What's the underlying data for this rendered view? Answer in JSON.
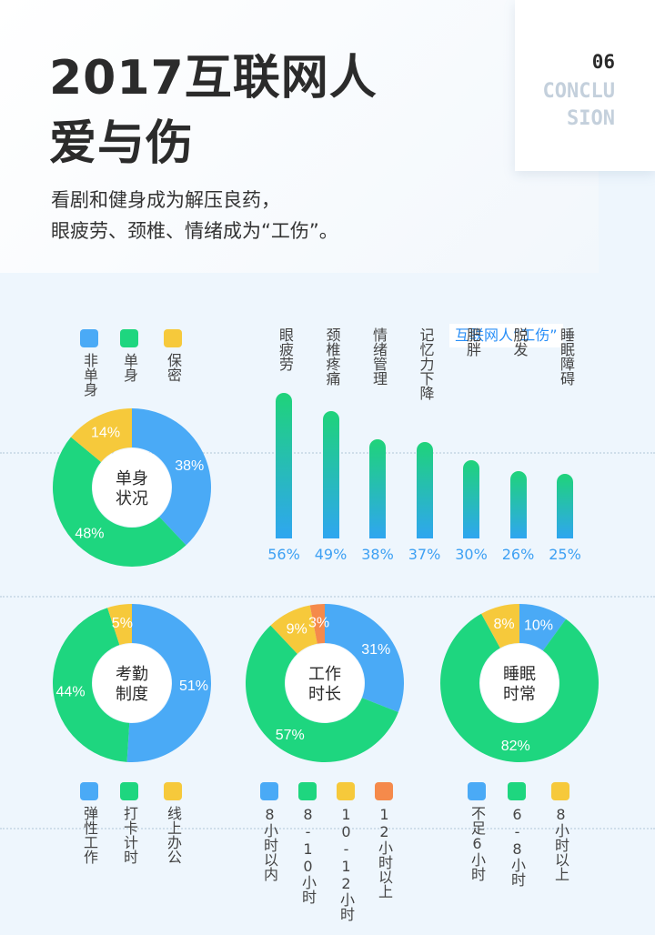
{
  "header": {
    "title_line1": "2017互联网人",
    "title_line2": "爱与伤",
    "subtitle_line1": "看剧和健身成为解压良药，",
    "subtitle_line2": "眼疲劳、颈椎、情绪成为“工伤”。",
    "section_number": "06",
    "section_word_line1": "CONCLU",
    "section_word_line2": "SION"
  },
  "colors": {
    "blue": "#4aaaf6",
    "green": "#1ed67f",
    "yellow": "#f6c93b",
    "orange": "#f58a4b"
  },
  "chart_data": [
    {
      "type": "pie",
      "center_label": "单身\n状况",
      "slices": [
        {
          "name": "非单身",
          "value": 38,
          "label": "38%",
          "color": "#4aaaf6"
        },
        {
          "name": "单身",
          "value": 48,
          "label": "48%",
          "color": "#1ed67f"
        },
        {
          "name": "保密",
          "value": 14,
          "label": "14%",
          "color": "#f6c93b"
        }
      ]
    },
    {
      "type": "bar",
      "title": "互联网人“工伤”",
      "categories": [
        "眼疲劳",
        "颈椎疼痛",
        "情绪管理",
        "记忆力下降",
        "肥胖",
        "脱发",
        "睡眠障碍"
      ],
      "values": [
        56,
        49,
        38,
        37,
        30,
        26,
        25
      ],
      "value_labels": [
        "56%",
        "49%",
        "38%",
        "37%",
        "30%",
        "26%",
        "25%"
      ],
      "ylim": [
        0,
        60
      ]
    },
    {
      "type": "pie",
      "center_label": "考勤\n制度",
      "slices": [
        {
          "name": "弹性工作",
          "value": 51,
          "label": "51%",
          "color": "#4aaaf6"
        },
        {
          "name": "打卡计时",
          "value": 44,
          "label": "44%",
          "color": "#1ed67f"
        },
        {
          "name": "线上办公",
          "value": 5,
          "label": "5%",
          "color": "#f6c93b"
        }
      ]
    },
    {
      "type": "pie",
      "center_label": "工作\n时长",
      "slices": [
        {
          "name": "8小时以内",
          "value": 31,
          "label": "31%",
          "color": "#4aaaf6"
        },
        {
          "name": "8-10小时",
          "value": 57,
          "label": "57%",
          "color": "#1ed67f"
        },
        {
          "name": "10-12小时",
          "value": 9,
          "label": "9%",
          "color": "#f6c93b"
        },
        {
          "name": "12小时以上",
          "value": 3,
          "label": "3%",
          "color": "#f58a4b"
        }
      ]
    },
    {
      "type": "pie",
      "center_label": "睡眠\n时常",
      "slices": [
        {
          "name": "不足6小时",
          "value": 10,
          "label": "10%",
          "color": "#4aaaf6"
        },
        {
          "name": "6-8小时",
          "value": 82,
          "label": "82%",
          "color": "#1ed67f"
        },
        {
          "name": "8小时以上",
          "value": 8,
          "label": "8%",
          "color": "#f6c93b"
        }
      ]
    }
  ]
}
